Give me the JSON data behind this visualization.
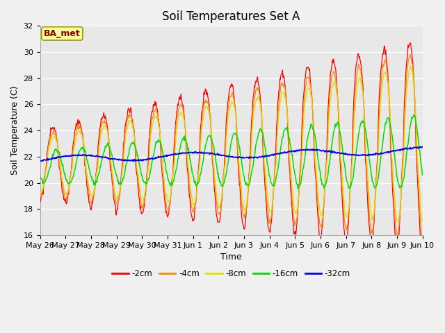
{
  "title": "Soil Temperatures Set A",
  "xlabel": "Time",
  "ylabel": "Soil Temperature (C)",
  "ylim": [
    16,
    32
  ],
  "yticks": [
    16,
    18,
    20,
    22,
    24,
    26,
    28,
    30,
    32
  ],
  "legend_labels": [
    "-2cm",
    "-4cm",
    "-8cm",
    "-16cm",
    "-32cm"
  ],
  "legend_colors": [
    "#ff0000",
    "#ff8800",
    "#dddd00",
    "#00dd00",
    "#0000ff"
  ],
  "annotation_text": "BA_met",
  "annotation_color": "#8b0000",
  "annotation_bg": "#ffff99",
  "plot_bg_color": "#e8e8e8",
  "fig_bg_color": "#f0f0f0",
  "grid_color": "#ffffff",
  "title_fontsize": 12,
  "label_fontsize": 9,
  "tick_fontsize": 8,
  "n_days": 15,
  "base_temp": 21.2,
  "trend": 0.08
}
